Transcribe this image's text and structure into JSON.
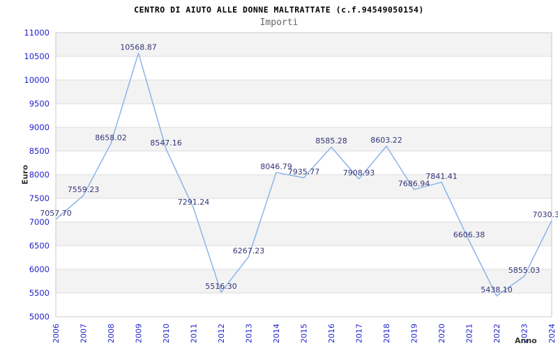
{
  "chart_data": {
    "type": "line",
    "title": "CENTRO DI AIUTO ALLE DONNE MALTRATTATE (c.f.94549050154)",
    "subtitle": "Importi",
    "xlabel": "Anno",
    "ylabel": "Euro",
    "categories": [
      "2006",
      "2007",
      "2008",
      "2009",
      "2010",
      "2011",
      "2012",
      "2013",
      "2014",
      "2015",
      "2016",
      "2017",
      "2018",
      "2019",
      "2020",
      "2021",
      "2022",
      "2023",
      "2024"
    ],
    "values": [
      7057.7,
      7559.23,
      8658.02,
      10568.87,
      8547.16,
      7291.24,
      5516.3,
      6267.23,
      8046.79,
      7935.77,
      8585.28,
      7908.93,
      8603.22,
      7686.94,
      7841.41,
      6606.38,
      5438.1,
      5855.03,
      7030.3
    ],
    "point_labels": [
      "7057.70",
      "7559.23",
      "8658.02",
      "10568.87",
      "8547.16",
      "7291.24",
      "5516.30",
      "6267.23",
      "8046.79",
      "7935.77",
      "8585.28",
      "7908.93",
      "8603.22",
      "7686.94",
      "7841.41",
      "6606.38",
      "5438.10",
      "5855.03",
      "7030.3"
    ],
    "ylim": [
      5000,
      11000
    ],
    "ytick_step": 500,
    "legend": "none",
    "grid": "horizontal-bands",
    "colors": {
      "line": "#8ab4e8",
      "tick_label": "#2222cc",
      "point_label": "#333377",
      "band": "#f3f3f3",
      "gridline": "#dcdcdc",
      "border": "#c8c8c8",
      "title": "#000000",
      "subtitle": "#666666",
      "axis_title": "#333333",
      "background": "#ffffff"
    }
  }
}
